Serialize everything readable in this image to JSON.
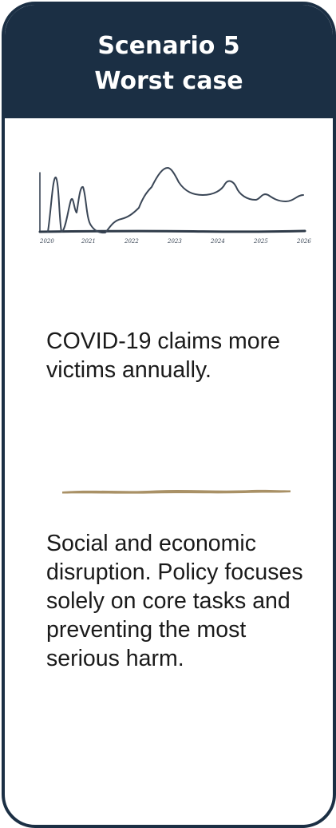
{
  "header": {
    "title_line1": "Scenario 5",
    "title_line2": "Worst case"
  },
  "sketch": {
    "years": [
      "2020",
      "2021",
      "2022",
      "2023",
      "2024",
      "2025",
      "2026"
    ],
    "stroke_color": "#3a4656"
  },
  "headline": "COVID-19 claims more victims annually.",
  "divider": {
    "color": "#a99166"
  },
  "description": "Social and economic disruption. Policy focuses solely on core tasks and preventing the most serious harm.",
  "colors": {
    "header_bg": "#1b2f44",
    "border": "#1b2f44",
    "text": "#1a1a1a"
  }
}
